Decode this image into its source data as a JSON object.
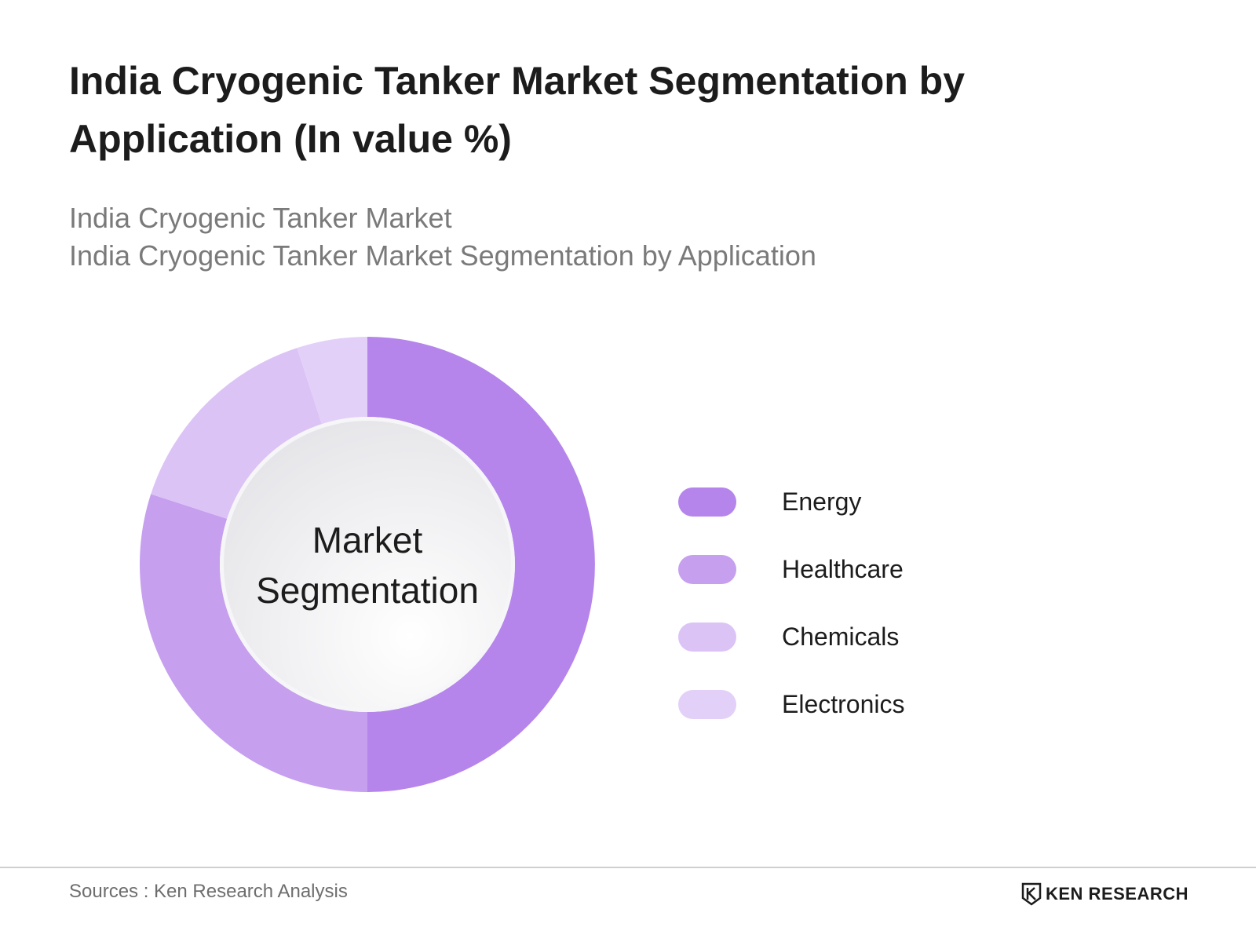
{
  "header": {
    "title": "India Cryogenic Tanker Market Segmentation by Application (In value %)",
    "subtitle_line1": "India Cryogenic Tanker Market",
    "subtitle_line2": "India Cryogenic Tanker Market Segmentation by Application"
  },
  "center_label": {
    "line1": "Market",
    "line2": "Segmentation"
  },
  "chart_data": {
    "type": "pie",
    "variant": "donut",
    "title": "India Cryogenic Tanker Market Segmentation by Application (In value %)",
    "categories": [
      "Energy",
      "Healthcare",
      "Chemicals",
      "Electronics"
    ],
    "values": [
      50,
      30,
      15,
      5
    ],
    "colors": [
      "#b585eb",
      "#c69fee",
      "#dcc3f6",
      "#e3d0f8"
    ],
    "legend_position": "right"
  },
  "footer": {
    "source": "Sources : Ken Research Analysis",
    "brand": "KEN RESEARCH"
  }
}
